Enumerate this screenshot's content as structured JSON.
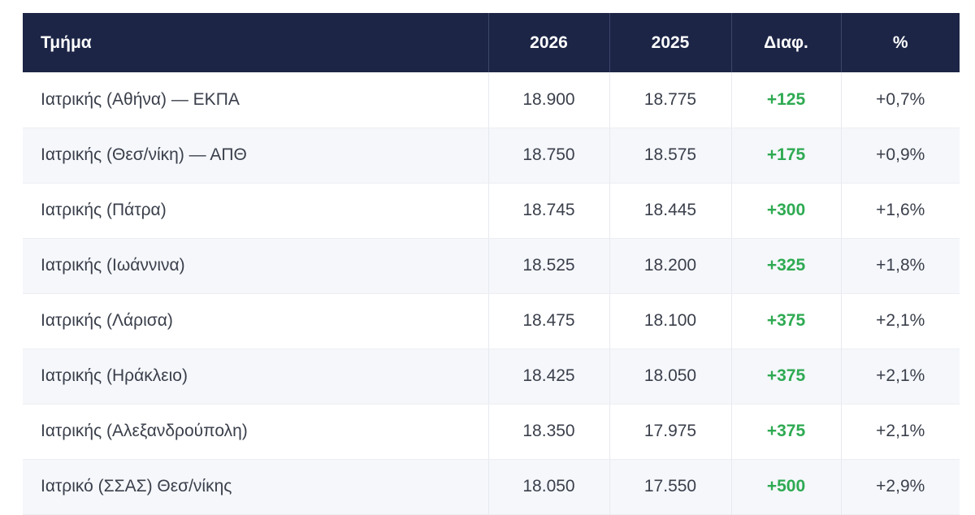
{
  "table": {
    "headers": [
      "Τμήμα",
      "2026",
      "2025",
      "Διαφ.",
      "%"
    ],
    "rows": [
      [
        "Ιατρικής (Αθήνα) — ΕΚΠΑ",
        "18.900",
        "18.775",
        "+125",
        "+0,7%"
      ],
      [
        "Ιατρικής (Θεσ/νίκη) — ΑΠΘ",
        "18.750",
        "18.575",
        "+175",
        "+0,9%"
      ],
      [
        "Ιατρικής (Πάτρα)",
        "18.745",
        "18.445",
        "+300",
        "+1,6%"
      ],
      [
        "Ιατρικής (Ιωάννινα)",
        "18.525",
        "18.200",
        "+325",
        "+1,8%"
      ],
      [
        "Ιατρικής (Λάρισα)",
        "18.475",
        "18.100",
        "+375",
        "+2,1%"
      ],
      [
        "Ιατρικής (Ηράκλειο)",
        "18.425",
        "18.050",
        "+375",
        "+2,1%"
      ],
      [
        "Ιατρικής (Αλεξανδρούπολη)",
        "18.350",
        "17.975",
        "+375",
        "+2,1%"
      ],
      [
        "Ιατρικό (ΣΣΑΣ) Θεσ/νίκης",
        "18.050",
        "17.550",
        "+500",
        "+2,9%"
      ]
    ]
  },
  "colors": {
    "header_bg": "#1c2546",
    "positive_diff": "#2eaa52"
  }
}
